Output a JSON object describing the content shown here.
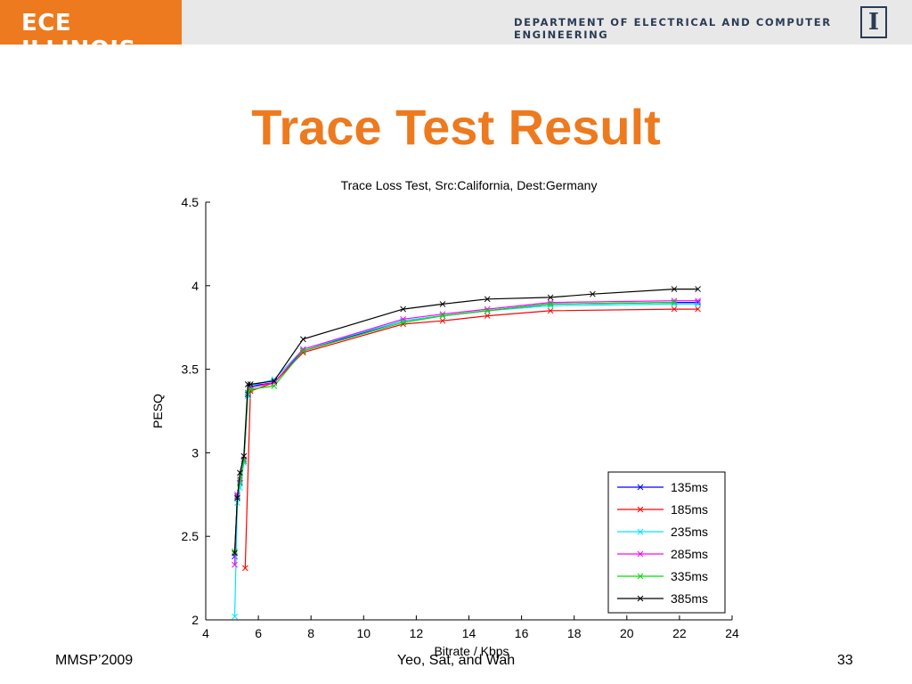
{
  "header": {
    "brand": "ECE ILLINOIS",
    "department": "DEPARTMENT OF ELECTRICAL AND COMPUTER ENGINEERING",
    "logo_letter": "I"
  },
  "slide": {
    "title": "Trace Test Result"
  },
  "footer": {
    "left": "MMSP’2009",
    "center": "Yeo, Sat, and Wah",
    "right": "33"
  },
  "chart_data": {
    "type": "line",
    "title": "Trace Loss Test, Src:California, Dest:Germany",
    "xlabel": "Bitrate / Kbps",
    "ylabel": "PESQ",
    "xlim": [
      4,
      24
    ],
    "ylim": [
      2,
      4.5
    ],
    "xticks": [
      4,
      6,
      8,
      10,
      12,
      14,
      16,
      18,
      20,
      22,
      24
    ],
    "yticks": [
      2,
      2.5,
      3,
      3.5,
      4,
      4.5
    ],
    "ytick_labels": [
      "2",
      "2.5",
      "3",
      "3.5",
      "4",
      "4.5"
    ],
    "grid": false,
    "legend_position": "bottom-right",
    "marker": "x",
    "series": [
      {
        "name": "135ms",
        "color": "#0000ff",
        "x": [
          5.1,
          5.2,
          5.3,
          5.45,
          5.6,
          5.7,
          6.6,
          7.7,
          11.5,
          13.0,
          14.7,
          17.1,
          21.8,
          22.7
        ],
        "y": [
          2.38,
          2.74,
          2.82,
          2.95,
          3.35,
          3.4,
          3.42,
          3.61,
          3.79,
          3.82,
          3.85,
          3.89,
          3.9,
          3.9
        ]
      },
      {
        "name": "185ms",
        "color": "#ff0000",
        "x": [
          5.5,
          5.7,
          6.6,
          7.7,
          11.5,
          13.0,
          14.7,
          17.1,
          21.8,
          22.7
        ],
        "y": [
          2.31,
          3.37,
          3.42,
          3.6,
          3.77,
          3.79,
          3.82,
          3.85,
          3.86,
          3.86
        ]
      },
      {
        "name": "235ms",
        "color": "#00e5ff",
        "x": [
          5.1,
          5.2,
          5.3,
          5.45,
          5.6,
          5.7,
          6.6,
          7.7,
          11.5,
          13.0,
          14.7,
          17.1,
          21.8,
          22.7
        ],
        "y": [
          2.02,
          2.7,
          2.79,
          2.94,
          3.34,
          3.4,
          3.44,
          3.62,
          3.79,
          3.82,
          3.85,
          3.88,
          3.89,
          3.89
        ]
      },
      {
        "name": "285ms",
        "color": "#ff00ff",
        "x": [
          5.1,
          5.2,
          5.3,
          5.45,
          5.6,
          5.7,
          6.6,
          7.7,
          11.5,
          13.0,
          14.7,
          17.1,
          21.8,
          22.7
        ],
        "y": [
          2.33,
          2.75,
          2.84,
          2.96,
          3.36,
          3.39,
          3.42,
          3.62,
          3.8,
          3.83,
          3.86,
          3.9,
          3.91,
          3.91
        ]
      },
      {
        "name": "335ms",
        "color": "#00dd00",
        "x": [
          5.1,
          5.2,
          5.3,
          5.45,
          5.6,
          5.7,
          6.6,
          7.7,
          11.5,
          13.0,
          14.7,
          17.1,
          21.8
        ],
        "y": [
          2.41,
          2.73,
          2.83,
          2.95,
          3.36,
          3.38,
          3.4,
          3.61,
          3.78,
          3.82,
          3.85,
          3.89,
          3.9
        ]
      },
      {
        "name": "385ms",
        "color": "#000000",
        "x": [
          5.1,
          5.2,
          5.3,
          5.45,
          5.6,
          5.7,
          6.6,
          7.7,
          11.5,
          13.0,
          14.7,
          17.1,
          18.7,
          21.8,
          22.7
        ],
        "y": [
          2.4,
          2.73,
          2.88,
          2.98,
          3.41,
          3.41,
          3.43,
          3.68,
          3.86,
          3.89,
          3.92,
          3.93,
          3.95,
          3.98,
          3.98
        ]
      }
    ]
  }
}
